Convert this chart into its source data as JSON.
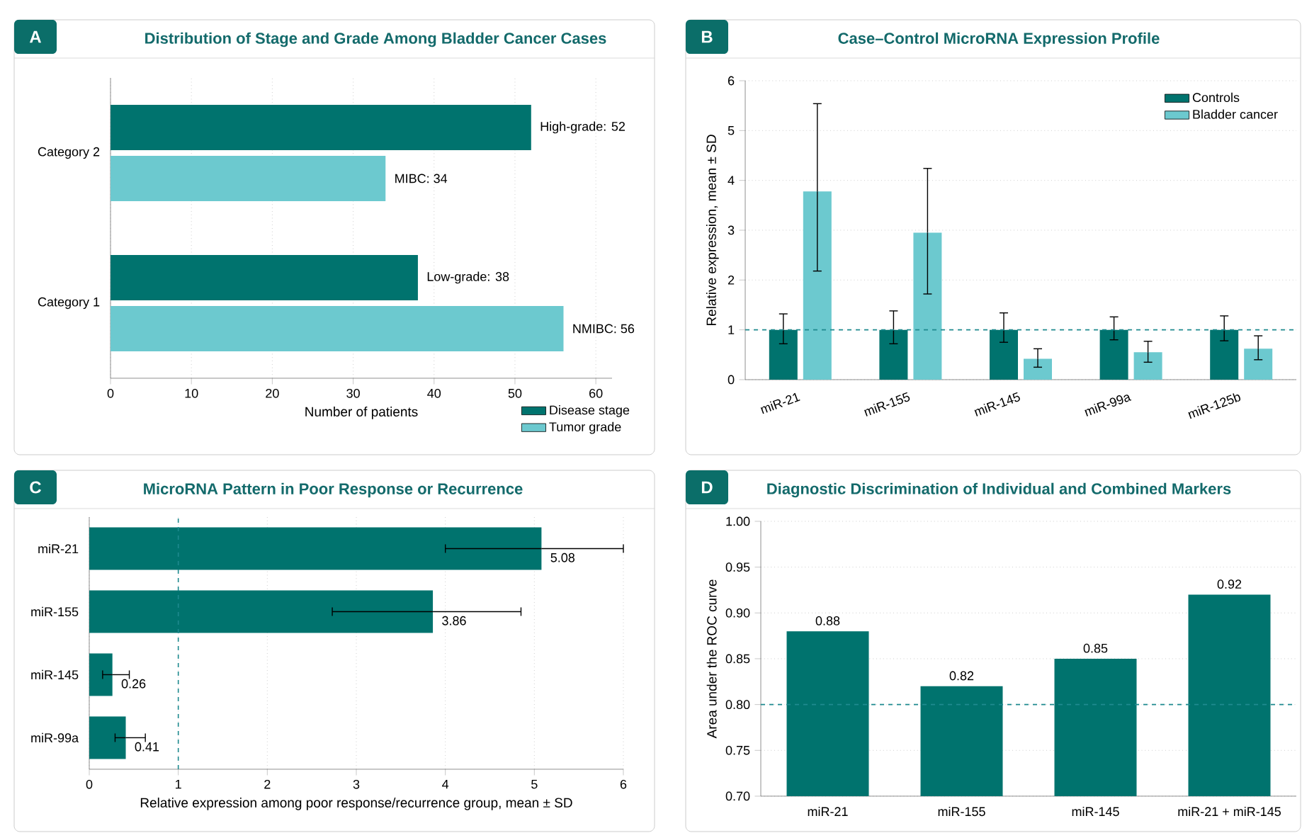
{
  "chart_data": [
    {
      "type": "bar",
      "orientation": "horizontal",
      "title": "Distribution of Stage and Grade Among Bladder Cancer Cases",
      "annotations": [
        "A"
      ],
      "categories": [
        "Category 2",
        "Category 1"
      ],
      "xlabel": "Number of patients",
      "xlim": [
        0,
        62
      ],
      "xticks": [
        0,
        10,
        20,
        30,
        40,
        50,
        60
      ],
      "grid": "x",
      "legend": "bottom right",
      "series": [
        {
          "name": "Disease stage",
          "color": "#00736e",
          "values": [
            52,
            38
          ],
          "value_labels": [
            "High-grade: 52",
            "Low-grade: 38"
          ]
        },
        {
          "name": "Tumor grade",
          "color": "#6cc9cf",
          "values": [
            34,
            56
          ],
          "value_labels": [
            "MIBC: 34",
            "NMIBC: 56"
          ]
        }
      ]
    },
    {
      "type": "bar",
      "title": "Case–Control MicroRNA Expression Profile",
      "annotations": [
        "B"
      ],
      "categories": [
        "miR-21",
        "miR-155",
        "miR-145",
        "miR-99a",
        "miR-125b"
      ],
      "ylabel": "Relative expression, mean ± SD",
      "ylim": [
        0,
        6
      ],
      "yticks": [
        0,
        1,
        2,
        3,
        4,
        5,
        6
      ],
      "grid": "y",
      "legend": "top right",
      "ref_lines": [
        {
          "axis": "y",
          "value": 1,
          "line_style": "dashed",
          "color": "#1f8a8f"
        }
      ],
      "series": [
        {
          "name": "Controls",
          "color": "#00736e",
          "values": [
            1,
            1,
            1,
            1,
            1
          ],
          "errors": [
            [
              0.72,
              1.32
            ],
            [
              0.72,
              1.38
            ],
            [
              0.75,
              1.34
            ],
            [
              0.8,
              1.26
            ],
            [
              0.78,
              1.28
            ]
          ]
        },
        {
          "name": "Bladder cancer",
          "color": "#6cc9cf",
          "values": [
            3.78,
            2.95,
            0.42,
            0.55,
            0.62
          ],
          "errors": [
            [
              2.18,
              5.54
            ],
            [
              1.72,
              4.24
            ],
            [
              0.25,
              0.62
            ],
            [
              0.35,
              0.77
            ],
            [
              0.4,
              0.88
            ]
          ]
        }
      ]
    },
    {
      "type": "bar",
      "orientation": "horizontal",
      "title": "MicroRNA Pattern in Poor Response or Recurrence",
      "annotations": [
        "C"
      ],
      "categories": [
        "miR-21",
        "miR-155",
        "miR-145",
        "miR-99a"
      ],
      "xlabel": "Relative expression among poor response/recurrence group, mean ± SD",
      "xlim": [
        0,
        6
      ],
      "xticks": [
        0,
        1,
        2,
        3,
        4,
        5,
        6
      ],
      "grid": "x",
      "color": "#00736e",
      "values": [
        5.08,
        3.86,
        0.26,
        0.41
      ],
      "errors": [
        [
          4.0,
          6.0
        ],
        [
          2.73,
          4.85
        ],
        [
          0.15,
          0.45
        ],
        [
          0.29,
          0.63
        ]
      ],
      "data_labels": true,
      "ref_lines": [
        {
          "axis": "x",
          "value": 1,
          "line_style": "dashed",
          "color": "#1f8a8f"
        }
      ]
    },
    {
      "type": "bar",
      "title": "Diagnostic Discrimination of Individual and Combined Markers",
      "annotations": [
        "D"
      ],
      "categories": [
        "miR-21",
        "miR-155",
        "miR-145",
        "miR-21 + miR-145"
      ],
      "ylabel": "Area under the ROC curve",
      "ylim": [
        0.7,
        1.0
      ],
      "yticks": [
        {
          "value": 0.7,
          "label": "0.70"
        },
        {
          "value": 0.75,
          "label": "0.75"
        },
        {
          "value": 0.8,
          "label": "0.80"
        },
        {
          "value": 0.85,
          "label": "0.85"
        },
        {
          "value": 0.9,
          "label": "0.90"
        },
        {
          "value": 0.95,
          "label": "0.95"
        },
        {
          "value": 1.0,
          "label": "1.00"
        }
      ],
      "grid": "y",
      "color": "#00736e",
      "values": [
        0.88,
        0.82,
        0.85,
        0.92
      ],
      "data_labels": true,
      "ref_lines": [
        {
          "axis": "y",
          "value": 0.8,
          "line_style": "dashed",
          "color": "#1f8a8f"
        }
      ]
    }
  ]
}
